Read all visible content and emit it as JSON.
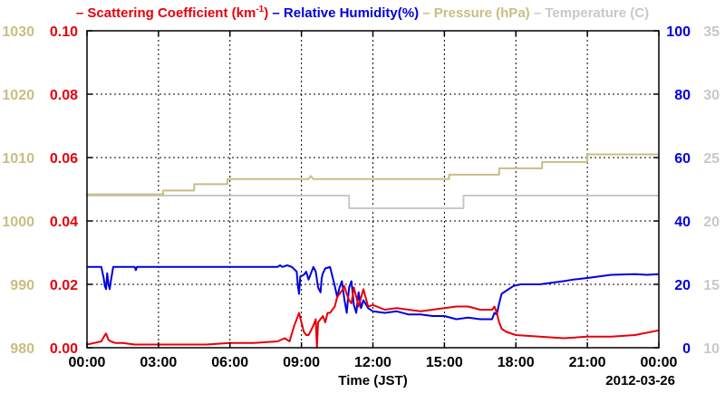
{
  "chart_data": {
    "type": "line",
    "legend": [
      {
        "name": "Scattering Coefficient (km",
        "sup": "-1",
        "tail": ")",
        "color": "#e6000a"
      },
      {
        "name": "Relative Humidity(%)",
        "color": "#0000e0"
      },
      {
        "name": "Pressure (hPa)",
        "color": "#c8be82"
      },
      {
        "name": "Temperature (C)",
        "color": "#c8c8c8"
      }
    ],
    "xlabel": "Time (JST)",
    "date_label": "2012-03-26",
    "x_ticks": [
      "00:00",
      "03:00",
      "06:00",
      "09:00",
      "12:00",
      "15:00",
      "18:00",
      "21:00",
      "00:00"
    ],
    "xlim": [
      0,
      24
    ],
    "axes": {
      "pressure": {
        "ticks": [
          "1030",
          "1020",
          "1010",
          "1000",
          "990",
          "980"
        ],
        "ylim": [
          980,
          1030
        ],
        "color": "#c8be82"
      },
      "scattering": {
        "ticks": [
          "0.10",
          "0.08",
          "0.06",
          "0.04",
          "0.02",
          "0.00"
        ],
        "ylim": [
          0,
          0.1
        ],
        "color": "#e6000a"
      },
      "humidity": {
        "ticks": [
          "100",
          "80",
          "60",
          "40",
          "20",
          "0"
        ],
        "ylim": [
          0,
          100
        ],
        "color": "#0000e0"
      },
      "temperature": {
        "ticks": [
          "35",
          "30",
          "25",
          "20",
          "15",
          "10"
        ],
        "ylim": [
          10,
          35
        ],
        "color": "#c8c8c8"
      }
    },
    "series": [
      {
        "name": "Temperature",
        "axis": "temperature",
        "color": "#c8c8c8",
        "x": [
          0,
          11.0,
          11.0,
          15.8,
          15.8,
          24
        ],
        "y": [
          22.0,
          22.0,
          21.0,
          21.0,
          22.0,
          22.0
        ]
      },
      {
        "name": "Pressure",
        "axis": "pressure",
        "color": "#c8be82",
        "x": [
          0,
          3.2,
          3.2,
          4.5,
          4.5,
          5.9,
          5.9,
          9.3,
          9.4,
          9.5,
          15.2,
          15.2,
          17.3,
          17.3,
          19.1,
          19.1,
          21.0,
          21.0,
          24
        ],
        "y": [
          1004.2,
          1004.2,
          1004.8,
          1004.8,
          1005.8,
          1005.8,
          1006.6,
          1006.6,
          1007.1,
          1006.6,
          1006.6,
          1007.3,
          1007.3,
          1008.3,
          1008.3,
          1009.3,
          1009.3,
          1010.5,
          1010.5
        ]
      },
      {
        "name": "Relative Humidity",
        "axis": "humidity",
        "color": "#0000e0",
        "x": [
          0,
          0.6,
          0.7,
          0.75,
          0.8,
          0.85,
          0.9,
          0.95,
          1.0,
          1.1,
          2.0,
          2.05,
          2.1,
          8.0,
          8.1,
          8.2,
          8.4,
          8.6,
          8.8,
          8.85,
          8.9,
          8.95,
          9.1,
          9.2,
          9.3,
          9.5,
          9.6,
          9.7,
          9.8,
          9.85,
          9.9,
          10.0,
          10.2,
          10.4,
          10.5,
          10.6,
          10.7,
          10.8,
          10.9,
          11.0,
          11.1,
          11.2,
          11.3,
          11.4,
          11.5,
          11.6,
          11.8,
          12.0,
          12.5,
          13.0,
          13.5,
          14.0,
          14.5,
          15.0,
          15.5,
          16.0,
          16.5,
          17.0,
          17.1,
          17.2,
          17.3,
          17.4,
          17.6,
          17.9,
          18.2,
          19.0,
          19.5,
          20.0,
          20.4,
          21.0,
          21.5,
          22.0,
          23.0,
          23.5,
          24.0
        ],
        "y": [
          25.5,
          25.5,
          22.0,
          19.5,
          18.5,
          23.5,
          20.0,
          18.5,
          21.0,
          25.5,
          25.5,
          24.5,
          25.5,
          25.5,
          26.0,
          25.5,
          26.0,
          25.5,
          24.0,
          19.5,
          17.0,
          22.5,
          23.0,
          24.0,
          21.5,
          25.5,
          24.0,
          19.0,
          17.5,
          22.0,
          23.5,
          25.0,
          25.5,
          19.5,
          16.0,
          19.0,
          21.0,
          15.5,
          11.0,
          19.0,
          21.0,
          13.5,
          11.0,
          17.5,
          12.5,
          15.0,
          12.5,
          11.5,
          11.0,
          11.5,
          10.5,
          10.5,
          10.0,
          10.0,
          9.0,
          9.5,
          9.0,
          9.0,
          11.0,
          10.5,
          14.0,
          17.0,
          18.0,
          19.5,
          20.0,
          20.0,
          20.5,
          21.0,
          21.5,
          22.0,
          22.5,
          23.0,
          23.2,
          23.0,
          23.2
        ]
      },
      {
        "name": "Scattering Coefficient",
        "axis": "scattering",
        "color": "#e6000a",
        "x": [
          0,
          0.3,
          0.6,
          0.75,
          0.8,
          0.9,
          1.0,
          1.2,
          1.5,
          2.0,
          3.0,
          4.0,
          5.0,
          6.0,
          7.0,
          8.0,
          8.3,
          8.5,
          8.7,
          8.8,
          8.9,
          9.0,
          9.1,
          9.2,
          9.3,
          9.5,
          9.6,
          9.65,
          9.7,
          9.9,
          10.0,
          10.1,
          10.2,
          10.4,
          10.5,
          10.6,
          10.7,
          10.8,
          10.9,
          11.0,
          11.1,
          11.2,
          11.3,
          11.4,
          11.6,
          11.8,
          12.0,
          12.5,
          13.0,
          13.5,
          14.0,
          14.5,
          15.0,
          15.5,
          16.0,
          16.5,
          17.0,
          17.1,
          17.2,
          17.3,
          17.4,
          17.6,
          18.0,
          19.0,
          20.0,
          21.0,
          22.0,
          23.0,
          24.0
        ],
        "y": [
          0.001,
          0.0015,
          0.002,
          0.004,
          0.0045,
          0.0025,
          0.002,
          0.0015,
          0.0015,
          0.001,
          0.001,
          0.001,
          0.001,
          0.0015,
          0.0015,
          0.002,
          0.003,
          0.002,
          0.007,
          0.009,
          0.011,
          0.008,
          0.005,
          0.004,
          0.004,
          0.007,
          0.009,
          0.0,
          0.008,
          0.01,
          0.008,
          0.011,
          0.011,
          0.013,
          0.016,
          0.017,
          0.018,
          0.0195,
          0.017,
          0.015,
          0.014,
          0.019,
          0.016,
          0.013,
          0.0185,
          0.013,
          0.0135,
          0.012,
          0.0125,
          0.012,
          0.0115,
          0.012,
          0.0125,
          0.013,
          0.013,
          0.012,
          0.012,
          0.013,
          0.011,
          0.008,
          0.006,
          0.005,
          0.004,
          0.0035,
          0.003,
          0.0035,
          0.0035,
          0.004,
          0.0055
        ]
      }
    ]
  }
}
